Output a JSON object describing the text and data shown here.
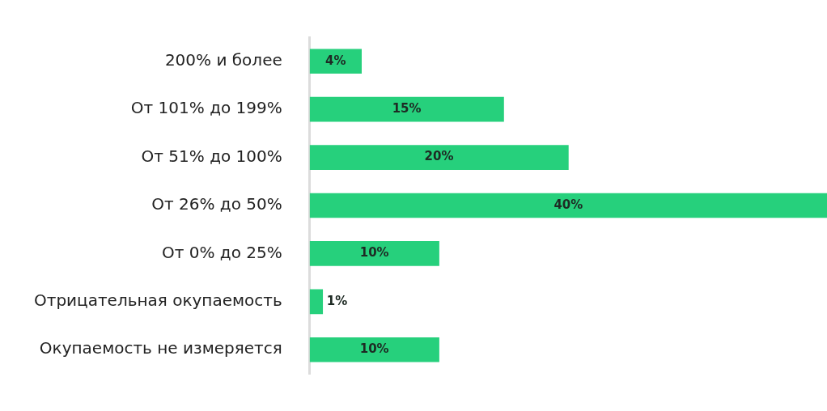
{
  "chart_data": {
    "type": "bar",
    "orientation": "horizontal",
    "categories": [
      "200% и более",
      "От 101% до 199%",
      "От 51% до 100%",
      "От 26% до 50%",
      "От 0% до 25%",
      "Отрицательная окупаемость",
      "Окупаемость не измеряется"
    ],
    "values": [
      4,
      15,
      20,
      40,
      10,
      1,
      10
    ],
    "color": "#26d07c",
    "data_labels": true,
    "value_labels": [
      "4%",
      "15%",
      "20%",
      "40%",
      "10%",
      "1%",
      "10%"
    ],
    "legend": false,
    "tick_labels": "y"
  }
}
